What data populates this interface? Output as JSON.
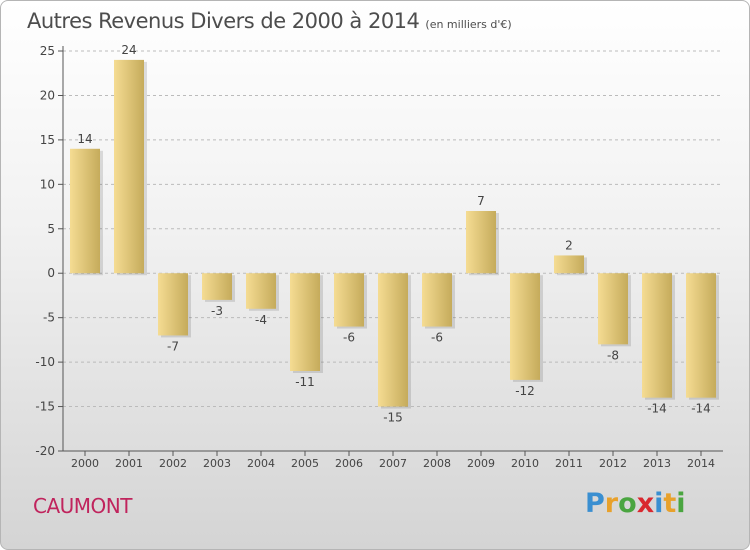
{
  "title": "Autres Revenus Divers de 2000 à 2014",
  "unit": "(en milliers d'€)",
  "place": "CAUMONT",
  "brand": {
    "text": "Proxiti",
    "colors": [
      "#3a8fd1",
      "#e8a12b",
      "#4aa540",
      "#d9282f",
      "#3a8fd1",
      "#e8a12b",
      "#4aa540"
    ]
  },
  "colors": {
    "bar_light": "#f5dc93",
    "bar_dark": "#c5ab5b",
    "axis": "#555555",
    "grid": "#bbbbbb",
    "text": "#444444"
  },
  "chart_data": {
    "type": "bar",
    "categories": [
      "2000",
      "2001",
      "2002",
      "2003",
      "2004",
      "2005",
      "2006",
      "2007",
      "2008",
      "2009",
      "2010",
      "2011",
      "2012",
      "2013",
      "2014"
    ],
    "values": [
      14,
      24,
      -7,
      -3,
      -4,
      -11,
      -6,
      -15,
      -6,
      7,
      -12,
      2,
      -8,
      -14,
      -14
    ],
    "ylim": [
      -20,
      25
    ],
    "yticks": [
      25,
      20,
      15,
      10,
      5,
      0,
      -5,
      -10,
      -15,
      -20
    ],
    "grid": "horizontal dashed",
    "title": "Autres Revenus Divers de 2000 à 2014",
    "xlabel": "",
    "ylabel": ""
  }
}
